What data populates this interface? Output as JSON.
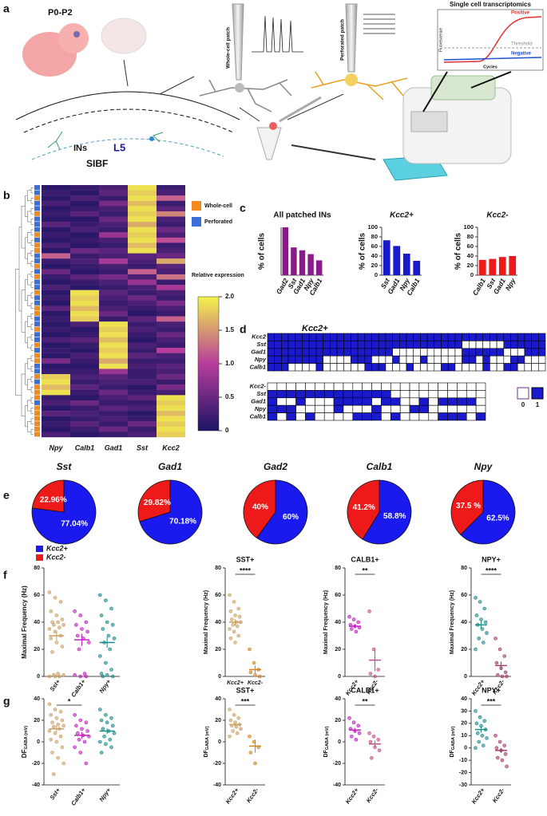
{
  "panel_labels": [
    "a",
    "b",
    "c",
    "d",
    "e",
    "f",
    "g"
  ],
  "panel_a": {
    "age": "P0-P2",
    "ins": "INs",
    "layer": "L5",
    "region": "SIBF",
    "whole_cell": "Whole-cell patch",
    "perforated": "Perforated patch",
    "transcriptomics": "Single cell transcriptomics",
    "positive": "Positive",
    "threshold": "Threshold",
    "negative": "Negative",
    "y_label": "Fluorescence",
    "x_label": "Cycles"
  },
  "heatmap": {
    "type": "heatmap",
    "columns": [
      "Npy",
      "Calb1",
      "Gad1",
      "Sst",
      "Kcc2"
    ],
    "legend": [
      {
        "name": "Whole-cell",
        "color": "#f28a1f"
      },
      {
        "name": "Perforated",
        "color": "#3b6fd8"
      }
    ],
    "row_groups": [
      1,
      1,
      0,
      1,
      1,
      0,
      1,
      1,
      1,
      0,
      1,
      0,
      0,
      1,
      1,
      0,
      1,
      0,
      1,
      1,
      0,
      1,
      1,
      0,
      0,
      1,
      1,
      0,
      1,
      1,
      0,
      1,
      0,
      0,
      1,
      1,
      0,
      1,
      0,
      0,
      0,
      1,
      0,
      0,
      0,
      0,
      0,
      0
    ],
    "rows": [
      [
        0.1,
        0.2,
        0.3,
        1.9,
        0.2
      ],
      [
        0.2,
        0.1,
        0.4,
        1.8,
        0.3
      ],
      [
        0.1,
        0.3,
        0.2,
        1.9,
        1.2
      ],
      [
        0.3,
        0.1,
        0.6,
        1.7,
        0.2
      ],
      [
        0.1,
        0.2,
        0.3,
        1.9,
        0.4
      ],
      [
        0.2,
        0.4,
        0.2,
        1.8,
        1.4
      ],
      [
        0.1,
        0.1,
        0.5,
        1.9,
        0.3
      ],
      [
        0.4,
        0.2,
        0.3,
        1.6,
        0.2
      ],
      [
        0.1,
        0.3,
        0.2,
        1.9,
        0.5
      ],
      [
        0.2,
        0.1,
        0.8,
        1.8,
        0.3
      ],
      [
        0.1,
        0.2,
        0.3,
        1.9,
        1.1
      ],
      [
        0.3,
        0.1,
        0.2,
        1.7,
        0.2
      ],
      [
        0.1,
        0.5,
        0.4,
        1.9,
        0.3
      ],
      [
        1.2,
        0.2,
        0.3,
        0.4,
        0.5
      ],
      [
        0.2,
        0.3,
        0.9,
        0.3,
        1.6
      ],
      [
        0.1,
        0.2,
        0.3,
        0.2,
        0.4
      ],
      [
        0.5,
        0.1,
        0.2,
        1.2,
        0.3
      ],
      [
        0.2,
        0.4,
        0.6,
        0.3,
        1.3
      ],
      [
        0.1,
        0.2,
        0.3,
        0.8,
        0.2
      ],
      [
        0.3,
        0.1,
        0.2,
        0.3,
        0.9
      ],
      [
        0.1,
        1.9,
        0.4,
        0.2,
        0.3
      ],
      [
        0.2,
        1.8,
        0.3,
        0.5,
        0.2
      ],
      [
        0.1,
        1.9,
        0.2,
        0.3,
        0.6
      ],
      [
        0.4,
        1.7,
        0.3,
        0.2,
        0.3
      ],
      [
        0.1,
        1.9,
        0.5,
        0.1,
        0.2
      ],
      [
        0.2,
        1.8,
        0.2,
        0.4,
        1.2
      ],
      [
        0.1,
        0.3,
        1.9,
        0.2,
        0.3
      ],
      [
        0.2,
        0.1,
        1.8,
        0.3,
        0.2
      ],
      [
        0.1,
        0.2,
        1.9,
        0.2,
        0.5
      ],
      [
        0.3,
        0.4,
        1.7,
        0.1,
        0.3
      ],
      [
        0.1,
        0.2,
        1.9,
        0.3,
        0.2
      ],
      [
        0.2,
        0.1,
        1.8,
        0.2,
        1.0
      ],
      [
        0.1,
        0.3,
        1.9,
        0.4,
        0.3
      ],
      [
        0.6,
        0.2,
        1.6,
        0.2,
        0.2
      ],
      [
        0.1,
        0.1,
        1.9,
        0.3,
        0.4
      ],
      [
        0.2,
        0.2,
        0.8,
        0.2,
        0.3
      ],
      [
        1.8,
        0.3,
        0.4,
        0.2,
        0.5
      ],
      [
        1.9,
        0.2,
        0.3,
        0.3,
        0.2
      ],
      [
        1.7,
        0.4,
        0.2,
        0.1,
        0.6
      ],
      [
        1.9,
        0.2,
        0.5,
        0.2,
        0.3
      ],
      [
        0.2,
        0.1,
        0.3,
        0.4,
        1.9
      ],
      [
        0.3,
        0.5,
        0.2,
        0.2,
        1.8
      ],
      [
        0.1,
        0.2,
        0.4,
        0.3,
        1.9
      ],
      [
        0.4,
        0.3,
        0.2,
        0.1,
        1.7
      ],
      [
        0.1,
        0.2,
        0.3,
        0.2,
        1.9
      ],
      [
        0.2,
        0.4,
        0.2,
        0.5,
        1.8
      ],
      [
        0.1,
        0.2,
        0.5,
        0.2,
        1.9
      ],
      [
        0.3,
        0.1,
        0.2,
        0.3,
        1.8
      ]
    ],
    "colorbar_label": "Relative expression",
    "colormap": [
      "#1b1464",
      "#b83c9c",
      "#f3f34a"
    ],
    "zlim": [
      0,
      2
    ],
    "zticks": [
      0,
      0.5,
      {
        "value": 1,
        "label": "1.0"
      },
      1.5,
      {
        "value": 2,
        "label": "2.0"
      }
    ]
  },
  "matrix": {
    "title": "Kcc2+",
    "colors": [
      "#ffffff",
      "#1a1acc"
    ],
    "legend": [
      0,
      1
    ],
    "top_rows": [
      "Kcc2",
      "Sst",
      "Gad1",
      "Npy",
      "Calb1"
    ],
    "top": [
      [
        1,
        1,
        1,
        1,
        1,
        1,
        1,
        1,
        1,
        1,
        1,
        1,
        1,
        1,
        1,
        1,
        1,
        1,
        1,
        1,
        1,
        1,
        1,
        1,
        1,
        1,
        1,
        1,
        1,
        1,
        1,
        1,
        1,
        1,
        1,
        1,
        1,
        1,
        1,
        1
      ],
      [
        1,
        1,
        1,
        1,
        1,
        1,
        1,
        1,
        1,
        1,
        1,
        1,
        1,
        1,
        1,
        1,
        1,
        1,
        1,
        1,
        1,
        1,
        1,
        1,
        1,
        1,
        1,
        1,
        0,
        0,
        0,
        0,
        0,
        0,
        1,
        1,
        1,
        1,
        1,
        1
      ],
      [
        1,
        1,
        1,
        1,
        1,
        1,
        1,
        1,
        1,
        1,
        1,
        1,
        1,
        1,
        1,
        1,
        1,
        1,
        0,
        0,
        0,
        0,
        0,
        0,
        0,
        0,
        0,
        0,
        1,
        1,
        1,
        1,
        1,
        1,
        0,
        0,
        0,
        1,
        1,
        1
      ],
      [
        1,
        1,
        1,
        1,
        1,
        1,
        1,
        1,
        0,
        0,
        0,
        0,
        1,
        1,
        1,
        0,
        0,
        0,
        1,
        0,
        0,
        0,
        1,
        0,
        0,
        0,
        0,
        0,
        1,
        1,
        0,
        1,
        0,
        0,
        0,
        1,
        1,
        0,
        0,
        0
      ],
      [
        1,
        1,
        1,
        0,
        0,
        0,
        0,
        1,
        0,
        0,
        0,
        0,
        0,
        0,
        1,
        1,
        1,
        0,
        0,
        0,
        1,
        0,
        0,
        0,
        0,
        1,
        1,
        0,
        0,
        0,
        0,
        1,
        0,
        0,
        1,
        1,
        0,
        0,
        0,
        0
      ]
    ],
    "bottom_rows": [
      "Kcc2-",
      "Sst",
      "Gad1",
      "Npy",
      "Calb1"
    ],
    "bottom": [
      [
        0,
        0,
        0,
        0,
        0,
        0,
        0,
        0,
        0,
        0,
        0,
        0,
        0,
        0,
        0,
        0,
        0,
        0,
        0,
        0,
        0,
        0,
        0
      ],
      [
        1,
        1,
        1,
        1,
        1,
        1,
        1,
        1,
        1,
        1,
        1,
        1,
        1,
        0,
        0,
        0,
        0,
        0,
        0,
        0,
        0,
        0,
        0
      ],
      [
        1,
        0,
        0,
        1,
        0,
        0,
        0,
        1,
        1,
        1,
        1,
        0,
        1,
        1,
        0,
        0,
        1,
        0,
        1,
        1,
        1,
        1,
        0
      ],
      [
        1,
        1,
        1,
        0,
        0,
        0,
        0,
        1,
        0,
        0,
        0,
        1,
        0,
        0,
        0,
        1,
        1,
        0,
        0,
        0,
        0,
        0,
        0
      ],
      [
        1,
        0,
        1,
        0,
        1,
        0,
        0,
        0,
        0,
        1,
        1,
        1,
        0,
        1,
        0,
        0,
        0,
        0,
        1,
        1,
        1,
        0,
        1
      ]
    ]
  },
  "pie_legend": [
    {
      "name": "Kcc2+",
      "color": "#1a1aee"
    },
    {
      "name": "Kcc2-",
      "color": "#ee1a1a"
    }
  ],
  "chart_data": [
    {
      "type": "bar",
      "title": "All patched INs",
      "y_label": "% of cells",
      "categories": [
        "Gad2",
        "Sst",
        "Gad1",
        "Npy",
        "Calb1"
      ],
      "values": [
        100,
        58,
        52,
        44,
        31
      ],
      "color": "#8a1a8a",
      "ylim": [
        0,
        100
      ]
    },
    {
      "type": "bar",
      "title": "Kcc2+",
      "y_label": "% of cells",
      "categories": [
        "Sst",
        "Gad1",
        "Npy",
        "Calb1"
      ],
      "values": [
        73,
        61,
        45,
        30
      ],
      "color": "#1a1acc",
      "ylim": [
        0,
        100
      ],
      "yticks": [
        0,
        20,
        40,
        60,
        80,
        100
      ]
    },
    {
      "type": "bar",
      "title": "Kcc2-",
      "y_label": "% of cells",
      "categories": [
        "Calb1",
        "Sst",
        "Gad1",
        "Npy"
      ],
      "values": [
        32,
        34,
        38,
        40
      ],
      "color": "#ee1a1a",
      "ylim": [
        0,
        100
      ],
      "yticks": [
        0,
        20,
        40,
        60,
        80,
        100
      ]
    },
    {
      "type": "pie",
      "title": "Sst",
      "values": [
        77.04,
        22.96
      ],
      "value_labels": [
        "77.04%",
        "22.96%"
      ]
    },
    {
      "type": "pie",
      "title": "Gad1",
      "values": [
        70.18,
        29.82
      ],
      "value_labels": [
        "70.18%",
        "29.82%"
      ]
    },
    {
      "type": "pie",
      "title": "Gad2",
      "values": [
        60,
        40
      ],
      "value_labels": [
        "60%",
        "40%"
      ]
    },
    {
      "type": "pie",
      "title": "Calb1",
      "values": [
        58.8,
        41.2
      ],
      "value_labels": [
        "58.8%",
        "41.2%"
      ]
    },
    {
      "type": "pie",
      "title": "Npy",
      "values": [
        62.5,
        37.5
      ],
      "value_labels": [
        "62.5%",
        "37.5 %"
      ]
    },
    {
      "type": "strip",
      "y_label": "Maximal Frequency (Hz)",
      "categories": [
        "Sst+",
        "Calb1+",
        "Npy+"
      ],
      "colors": [
        "#c8a064",
        "#c020c0",
        "#1a8a8a"
      ],
      "ylim": [
        0,
        80
      ],
      "yticks": [
        0,
        20,
        40,
        60,
        80
      ],
      "groups": [
        [
          62,
          58,
          55,
          48,
          45,
          42,
          40,
          40,
          38,
          38,
          36,
          35,
          33,
          30,
          28,
          25,
          22,
          18,
          2,
          1,
          1,
          0,
          0,
          0
        ],
        [
          48,
          45,
          40,
          38,
          35,
          33,
          30,
          28,
          25,
          20,
          2,
          1,
          0,
          0
        ],
        [
          60,
          56,
          50,
          45,
          40,
          38,
          35,
          30,
          28,
          25,
          20,
          15,
          10,
          5,
          2,
          1,
          0,
          0
        ]
      ],
      "means": [
        30,
        27,
        25
      ],
      "sems": [
        3.5,
        4.5,
        4
      ]
    },
    {
      "type": "strip",
      "title": "SST+",
      "y_label": "Maximal Frequency (Hz)",
      "categories": [
        "Kcc2+",
        "Kcc2-"
      ],
      "colors": [
        "#c8a064",
        "#d4821e"
      ],
      "ylim": [
        0,
        80
      ],
      "yticks": [
        0,
        20,
        40,
        60,
        80
      ],
      "groups": [
        [
          60,
          55,
          50,
          48,
          45,
          44,
          42,
          40,
          40,
          38,
          37,
          35,
          33,
          30,
          28,
          25
        ],
        [
          20,
          10,
          5,
          3,
          1,
          0
        ]
      ],
      "means": [
        40,
        5
      ],
      "sems": [
        2.5,
        3
      ],
      "significance": "****"
    },
    {
      "type": "strip",
      "title": "CALB1+",
      "y_label": "Maximal Frequency (Hz)",
      "categories": [
        "Kcc2+",
        "Kcc2-"
      ],
      "colors": [
        "#c020c0",
        "#c0508a"
      ],
      "ylim": [
        0,
        80
      ],
      "yticks": [
        0,
        20,
        40,
        60,
        80
      ],
      "groups": [
        [
          44,
          42,
          40,
          38,
          37,
          36,
          35,
          33
        ],
        [
          48,
          20,
          5,
          2,
          0
        ]
      ],
      "means": [
        37,
        12
      ],
      "sems": [
        1.5,
        8
      ],
      "significance": "**"
    },
    {
      "type": "strip",
      "title": "NPY+",
      "y_label": "Maximal Frequency (Hz)",
      "categories": [
        "Kcc2+",
        "Kcc2-"
      ],
      "colors": [
        "#1a8a8a",
        "#a0406a"
      ],
      "ylim": [
        0,
        80
      ],
      "yticks": [
        0,
        20,
        40,
        60,
        80
      ],
      "groups": [
        [
          58,
          55,
          50,
          45,
          42,
          40,
          38,
          35,
          32,
          28,
          25,
          20
        ],
        [
          28,
          20,
          15,
          10,
          6,
          3,
          1,
          0,
          0
        ]
      ],
      "means": [
        38,
        8
      ],
      "sems": [
        3,
        3
      ],
      "significance": "****"
    },
    {
      "type": "strip",
      "y_label": "DF",
      "y_label_sub": "GABA (mV)",
      "categories": [
        "Sst+",
        "Calb1+",
        "Npy+"
      ],
      "colors": [
        "#c8a064",
        "#c020c0",
        "#1a8a8a"
      ],
      "ylim": [
        -40,
        40
      ],
      "yticks": [
        -40,
        -20,
        0,
        20,
        40
      ],
      "groups": [
        [
          35,
          30,
          28,
          25,
          22,
          20,
          18,
          16,
          15,
          14,
          12,
          10,
          8,
          5,
          2,
          0,
          -5,
          -10,
          -15,
          -20,
          -30
        ],
        [
          25,
          20,
          18,
          15,
          12,
          10,
          8,
          6,
          5,
          2,
          0,
          -5,
          -10,
          -20
        ],
        [
          30,
          25,
          22,
          20,
          18,
          15,
          12,
          10,
          8,
          5,
          2,
          0,
          -2,
          -5,
          -10
        ]
      ],
      "means": [
        12,
        6,
        10
      ],
      "sems": [
        3,
        3,
        2.5
      ],
      "significance": "*"
    },
    {
      "type": "strip",
      "title": "SST+",
      "y_label": "DF",
      "y_label_sub": "GABA (mV)",
      "categories": [
        "Kcc2+",
        "Kcc2-"
      ],
      "colors": [
        "#c8a064",
        "#d4821e"
      ],
      "ylim": [
        -40,
        40
      ],
      "yticks": [
        -40,
        -20,
        0,
        20,
        40
      ],
      "groups": [
        [
          30,
          25,
          22,
          20,
          18,
          16,
          15,
          14,
          12,
          10,
          8,
          5
        ],
        [
          5,
          0,
          -5,
          -10,
          -20
        ]
      ],
      "means": [
        16,
        -4
      ],
      "sems": [
        2,
        6
      ],
      "significance": "***"
    },
    {
      "type": "strip",
      "title": "CALB1+",
      "y_label": "DF",
      "y_label_sub": "GABA (mV)",
      "categories": [
        "Kcc2+",
        "Kcc2-"
      ],
      "colors": [
        "#c020c0",
        "#c0508a"
      ],
      "ylim": [
        -40,
        40
      ],
      "yticks": [
        -40,
        -20,
        0,
        20,
        40
      ],
      "groups": [
        [
          22,
          18,
          15,
          12,
          10,
          8,
          5,
          2
        ],
        [
          8,
          5,
          2,
          0,
          -5,
          -8,
          -15
        ]
      ],
      "means": [
        11,
        -2
      ],
      "sems": [
        2,
        3
      ],
      "significance": "**"
    },
    {
      "type": "strip",
      "title": "NPY+",
      "y_label": "DF",
      "y_label_sub": "GABA (mV)",
      "categories": [
        "Kcc2+",
        "Kcc2-"
      ],
      "colors": [
        "#1a8a8a",
        "#a0406a"
      ],
      "ylim": [
        -30,
        40
      ],
      "yticks": [
        -30,
        -20,
        -10,
        0,
        10,
        20,
        30,
        40
      ],
      "groups": [
        [
          30,
          25,
          22,
          20,
          18,
          15,
          12,
          10,
          8,
          5,
          2,
          0
        ],
        [
          10,
          5,
          2,
          0,
          -2,
          -5,
          -8,
          -10,
          -15
        ]
      ],
      "means": [
        15,
        -2
      ],
      "sems": [
        2.5,
        2
      ],
      "significance": "***"
    }
  ]
}
